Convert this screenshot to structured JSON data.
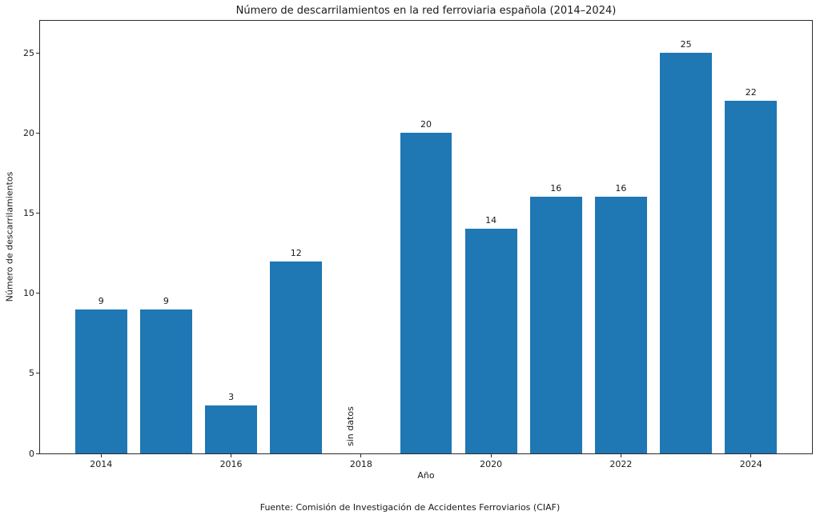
{
  "chart_data": {
    "type": "bar",
    "title": "Número de descarrilamientos en la red ferroviaria española (2014–2024)",
    "xlabel": "Año",
    "ylabel": "Número de descarrilamientos",
    "source_note": "Fuente: Comisión de Investigación de Accidentes Ferroviarios (CIAF)",
    "categories": [
      2014,
      2015,
      2016,
      2017,
      2018,
      2019,
      2020,
      2021,
      2022,
      2023,
      2024
    ],
    "values": [
      9,
      9,
      3,
      12,
      null,
      20,
      14,
      16,
      16,
      25,
      22
    ],
    "missing_data_text": "sin datos",
    "missing_data_year": 2018,
    "bar_color": "#1f77b4",
    "bar_width": 0.8,
    "xticks": [
      2014,
      2016,
      2018,
      2020,
      2022,
      2024
    ],
    "yticks": [
      0,
      5,
      10,
      15,
      20,
      25
    ],
    "xlim": [
      2013.06,
      2024.94
    ],
    "ylim": [
      0,
      27
    ],
    "grid": false,
    "legend": null
  }
}
